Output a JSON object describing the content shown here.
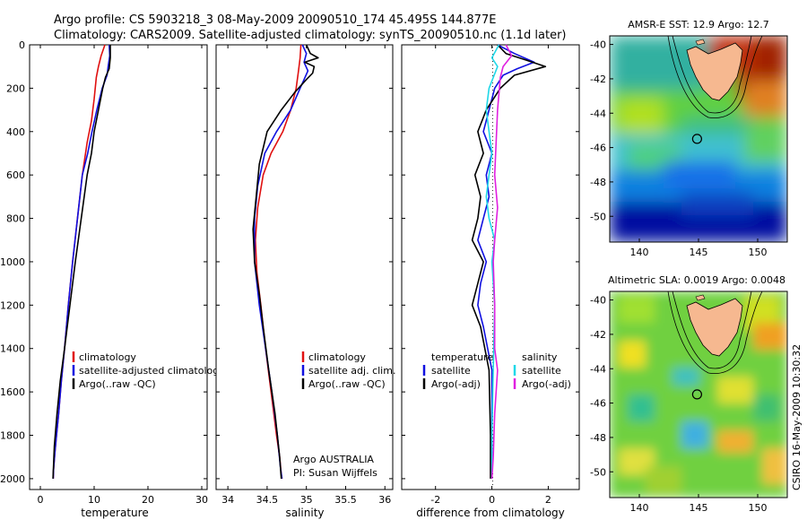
{
  "header": {
    "line1": "Argo profile: CS 5903218_3 08-May-2009 20090510_174 45.495S 144.877E",
    "line2": "Climatology: CARS2009. Satellite-adjusted climatology: synTS_20090510.nc (1.1d later)"
  },
  "footer": {
    "note1": "Argo AUSTRALIA",
    "note2": "PI: Susan Wijffels",
    "timestamp": "CSIRO 16-May-2009 10:30:32"
  },
  "chart_data": [
    {
      "type": "line",
      "xlabel": "temperature",
      "xlim": [
        -2,
        31
      ],
      "ylim": [
        2050,
        0
      ],
      "xticks": [
        "0",
        "10",
        "20",
        "30"
      ],
      "yticks": [
        "0",
        "200",
        "400",
        "600",
        "800",
        "1000",
        "1200",
        "1400",
        "1600",
        "1800",
        "2000"
      ],
      "legend": [
        "climatology",
        "satellite-adjusted climatology",
        "Argo(..raw -QC)"
      ],
      "legend_colors": [
        "#e01010",
        "#1010e0",
        "#000000"
      ],
      "series": [
        {
          "color": "#e01010",
          "x": [
            12.0,
            11.3,
            10.8,
            10.4,
            10.0,
            9.5,
            8.7,
            7.8,
            6.9,
            6.0,
            5.2,
            4.5,
            3.9,
            3.4,
            3.0,
            2.7,
            2.45,
            2.4
          ],
          "y": [
            0,
            50,
            100,
            150,
            250,
            350,
            450,
            600,
            800,
            1000,
            1200,
            1400,
            1550,
            1700,
            1800,
            1880,
            1960,
            2000
          ]
        },
        {
          "color": "#1010e0",
          "x": [
            12.8,
            12.9,
            12.6,
            12.4,
            11.5,
            10.5,
            9.6,
            8.8,
            7.8,
            6.9,
            6.0,
            5.2,
            4.5,
            3.9,
            3.4,
            3.0,
            2.7,
            2.45,
            2.4
          ],
          "y": [
            0,
            50,
            100,
            140,
            200,
            300,
            400,
            500,
            600,
            800,
            1000,
            1200,
            1400,
            1550,
            1700,
            1800,
            1880,
            1960,
            2000
          ]
        },
        {
          "color": "#000000",
          "x": [
            13.0,
            13.0,
            12.8,
            12.1,
            11.6,
            10.8,
            10.0,
            9.5,
            8.7,
            7.6,
            6.5,
            5.5,
            4.5,
            3.7,
            3.1,
            2.6,
            2.35
          ],
          "y": [
            0,
            60,
            110,
            150,
            200,
            300,
            400,
            500,
            600,
            800,
            1000,
            1200,
            1400,
            1550,
            1700,
            1850,
            2000
          ]
        }
      ]
    },
    {
      "type": "line",
      "xlabel": "salinity",
      "xlim": [
        33.85,
        36.1
      ],
      "ylim": [
        2050,
        0
      ],
      "xticks": [
        "34",
        "34.5",
        "35",
        "35.5",
        "36"
      ],
      "legend": [
        "climatology",
        "satellite adj. clim.",
        "Argo(..raw -QC)"
      ],
      "legend_colors": [
        "#e01010",
        "#1010e0",
        "#000000"
      ],
      "series": [
        {
          "color": "#e01010",
          "x": [
            34.93,
            34.92,
            34.9,
            34.87,
            34.8,
            34.7,
            34.55,
            34.45,
            34.38,
            34.35,
            34.37,
            34.42,
            34.48,
            34.55,
            34.62,
            34.66,
            34.68,
            34.69
          ],
          "y": [
            0,
            60,
            120,
            200,
            300,
            400,
            500,
            600,
            750,
            900,
            1050,
            1200,
            1400,
            1600,
            1800,
            1900,
            1980,
            2000
          ]
        },
        {
          "color": "#1010e0",
          "x": [
            34.95,
            35.0,
            34.97,
            35.02,
            34.97,
            34.92,
            34.8,
            34.62,
            34.47,
            34.38,
            34.34,
            34.34,
            34.4,
            34.48,
            34.56,
            34.63,
            34.67,
            34.69
          ],
          "y": [
            0,
            40,
            80,
            120,
            160,
            200,
            300,
            400,
            500,
            650,
            800,
            1000,
            1200,
            1400,
            1600,
            1800,
            1950,
            2000
          ]
        },
        {
          "color": "#000000",
          "x": [
            35.0,
            35.05,
            35.15,
            34.98,
            35.1,
            35.08,
            35.0,
            34.85,
            34.68,
            34.5,
            34.4,
            34.36,
            34.32,
            34.34,
            34.4,
            34.45,
            34.52,
            34.6,
            34.66,
            34.68
          ],
          "y": [
            0,
            40,
            60,
            80,
            100,
            130,
            160,
            220,
            300,
            400,
            550,
            700,
            850,
            1000,
            1150,
            1300,
            1500,
            1700,
            1900,
            2000
          ]
        }
      ]
    },
    {
      "type": "line",
      "xlabel": "difference from climatology",
      "xlim": [
        -3.2,
        3.1
      ],
      "ylim": [
        2050,
        0
      ],
      "xticks": [
        "-2",
        "0",
        "2"
      ],
      "legend": [
        "temperature",
        "satellite",
        "Argo(-adj)",
        "salinity",
        "satellite",
        "Argo(-adj)"
      ],
      "legend_colors": [
        "",
        "#1010e0",
        "#000000",
        "",
        "#20d8e8",
        "#e020e0"
      ],
      "series": [
        {
          "color": "#1010e0",
          "x": [
            0.2,
            0.8,
            1.5,
            0.9,
            0.4,
            0.1,
            -0.1,
            -0.3,
            0.0,
            -0.2,
            -0.1,
            -0.3,
            -0.5,
            -0.2,
            -0.4,
            -0.5,
            -0.3,
            0.0,
            0.0,
            0.0,
            0.0
          ],
          "y": [
            0,
            40,
            80,
            110,
            140,
            200,
            300,
            400,
            500,
            600,
            700,
            800,
            900,
            1000,
            1100,
            1200,
            1300,
            1500,
            1700,
            1900,
            2000
          ]
        },
        {
          "color": "#000000",
          "x": [
            0.2,
            0.5,
            1.2,
            1.9,
            0.8,
            0.3,
            -0.2,
            -0.5,
            -0.3,
            -0.6,
            -0.4,
            -0.5,
            -0.7,
            -0.3,
            -0.5,
            -0.7,
            -0.4,
            -0.1,
            -0.05,
            -0.05
          ],
          "y": [
            0,
            40,
            70,
            100,
            140,
            200,
            300,
            400,
            500,
            600,
            700,
            800,
            900,
            1000,
            1100,
            1200,
            1300,
            1500,
            1800,
            2000
          ]
        },
        {
          "color": "#20d8e8",
          "x": [
            0.25,
            0.0,
            0.2,
            -0.1,
            -0.2,
            -0.1,
            0.0,
            -0.1,
            -0.2,
            -0.1,
            0.1,
            0.0,
            0.1,
            0.05,
            0.0,
            0.0
          ],
          "y": [
            0,
            60,
            100,
            200,
            300,
            400,
            500,
            600,
            700,
            800,
            900,
            1000,
            1200,
            1500,
            1800,
            2000
          ]
        },
        {
          "color": "#e020e0",
          "x": [
            0.5,
            0.7,
            0.4,
            0.3,
            0.2,
            0.15,
            0.1,
            0.2,
            0.1,
            0.05,
            0.1,
            0.1,
            0.2,
            0.1,
            0.05,
            0.0
          ],
          "y": [
            0,
            50,
            100,
            150,
            300,
            450,
            600,
            750,
            900,
            1000,
            1200,
            1400,
            1500,
            1700,
            1900,
            2000
          ]
        }
      ]
    },
    {
      "type": "heatmap",
      "title": "AMSR-E SST: 12.9 Argo: 12.7",
      "xlim": [
        137.5,
        152.5
      ],
      "ylim": [
        -51.5,
        -39.5
      ],
      "xticks": [
        "140",
        "145",
        "150"
      ],
      "yticks": [
        "-40",
        "-42",
        "-44",
        "-46",
        "-48",
        "-50"
      ],
      "argo_position": {
        "lon": 144.877,
        "lat": -45.495
      }
    },
    {
      "type": "heatmap",
      "title": "Altimetric SLA: 0.0019 Argo: 0.0048",
      "xlim": [
        137.5,
        152.5
      ],
      "ylim": [
        -51.5,
        -39.5
      ],
      "xticks": [
        "140",
        "145",
        "150"
      ],
      "yticks": [
        "-40",
        "-42",
        "-44",
        "-46",
        "-48",
        "-50"
      ],
      "argo_position": {
        "lon": 144.877,
        "lat": -45.495
      }
    }
  ]
}
